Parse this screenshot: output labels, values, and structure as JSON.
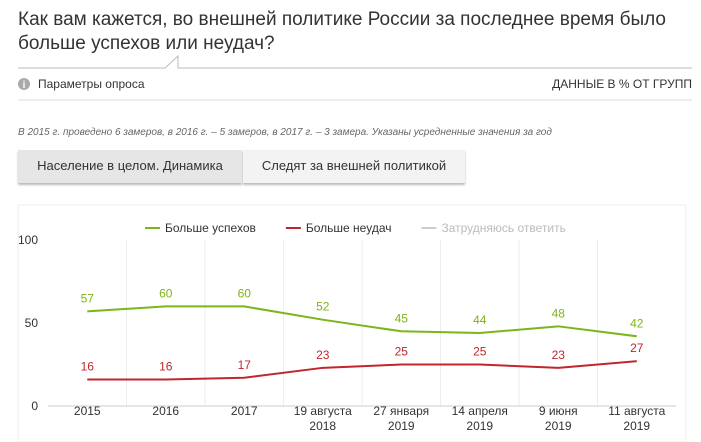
{
  "header": {
    "title": "Как вам кажется, во внешней политике России за последнее время было больше успехов или неудач?",
    "params": "Параметры опроса",
    "units": "ДАННЫЕ В % ОТ ГРУПП",
    "note": "В 2015 г. проведено 6 замеров, в 2016 г. – 5 замеров, в 2017 г. – 3 замера. Указаны усредненные значения за год"
  },
  "tabs": [
    "Население в целом. Динамика",
    "Следят за внешней политикой"
  ],
  "chart_data": {
    "type": "line",
    "categories": [
      "2015",
      "2016",
      "2017",
      "19 августа\n2018",
      "27 января\n2019",
      "14 апреля\n2019",
      "9 июня\n2019",
      "11 августа\n2019"
    ],
    "series": [
      {
        "name": "Больше успехов",
        "color": "#7cb518",
        "values": [
          57,
          60,
          60,
          52,
          45,
          44,
          48,
          42
        ]
      },
      {
        "name": "Больше неудач",
        "color": "#c0262e",
        "values": [
          16,
          16,
          17,
          23,
          25,
          25,
          23,
          27
        ]
      },
      {
        "name": "Затрудняюсь ответить",
        "color": "#cccccc",
        "hidden": true,
        "values": [
          null,
          null,
          null,
          null,
          null,
          null,
          null,
          null
        ]
      }
    ],
    "ylim": [
      0,
      100
    ],
    "yticks": [
      0,
      50,
      100
    ],
    "data_labels": true
  }
}
